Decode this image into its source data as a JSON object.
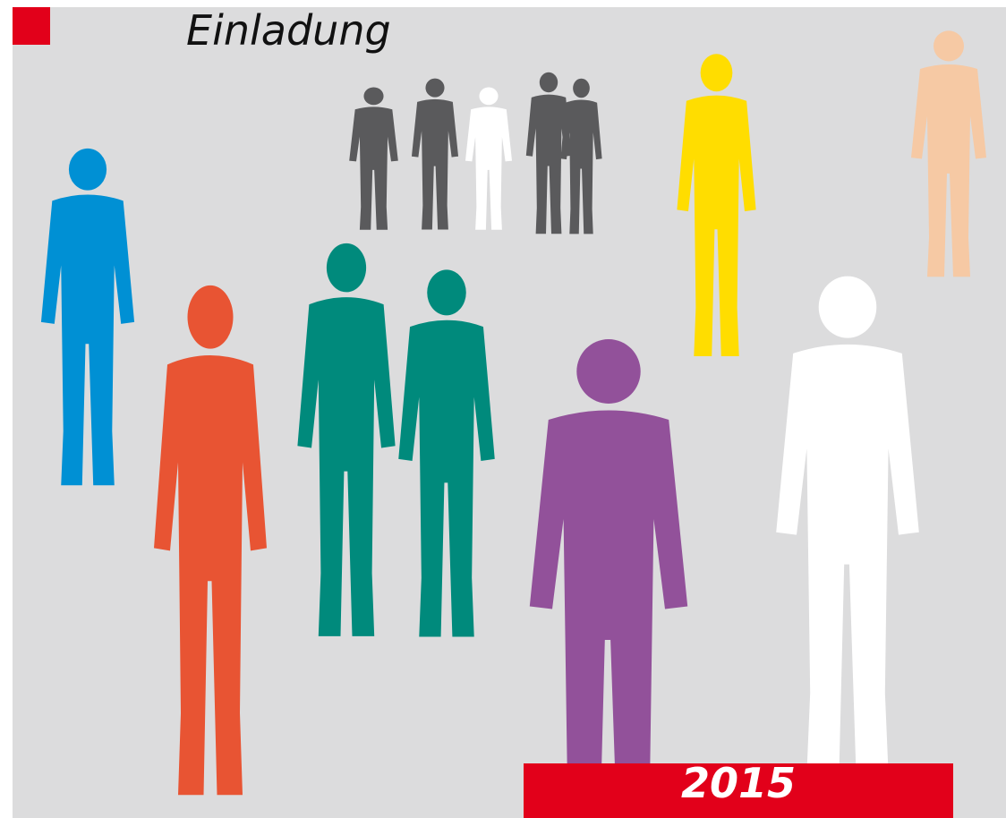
{
  "title": "Einladung",
  "year": "2015"
}
